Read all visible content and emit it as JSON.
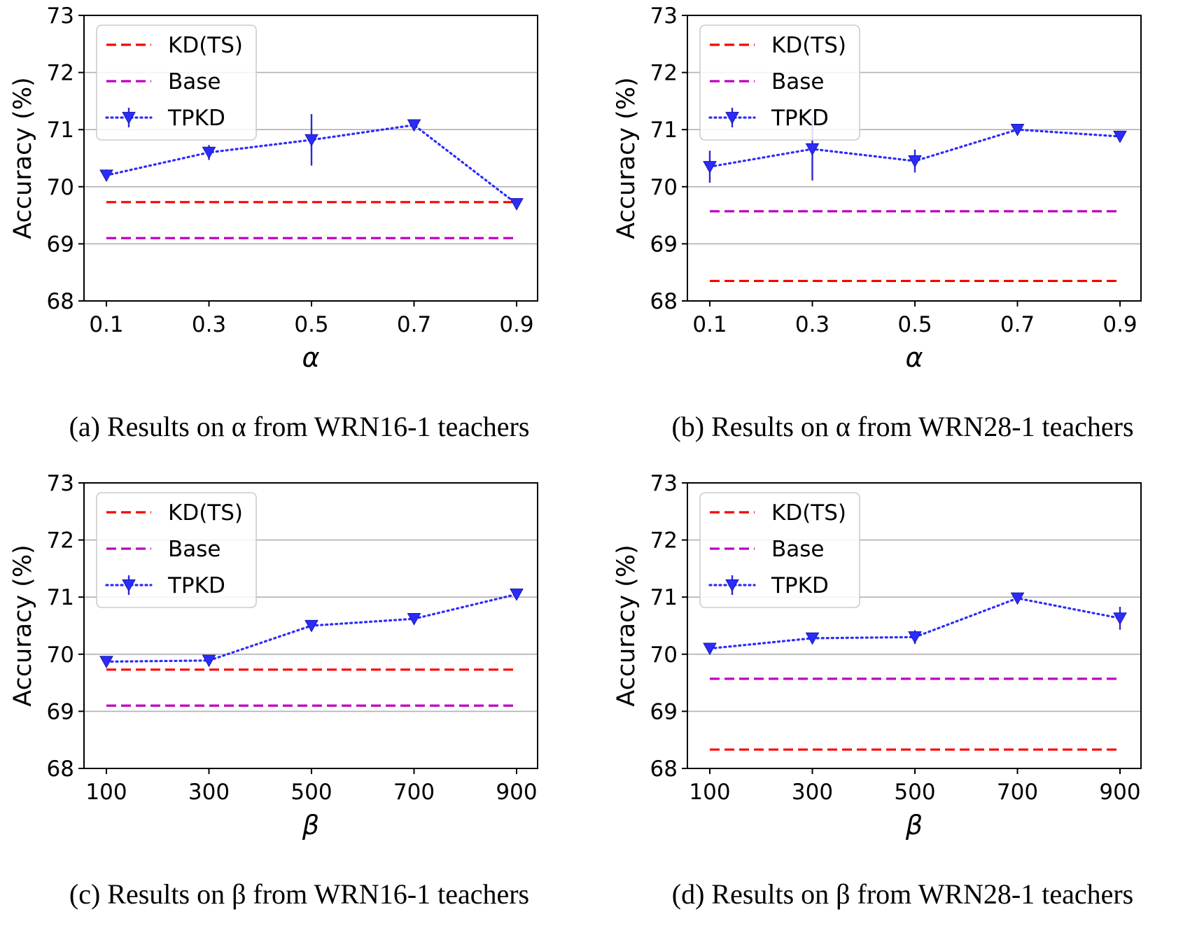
{
  "chart_data": [
    {
      "type": "line",
      "caption": "(a) Results on α from WRN16-1 teachers",
      "xlabel": "α",
      "ylabel": "Accuracy (%)",
      "categories": [
        "0.1",
        "0.3",
        "0.5",
        "0.7",
        "0.9"
      ],
      "yticks": [
        "68",
        "69",
        "70",
        "71",
        "72",
        "73"
      ],
      "ylim": [
        68,
        73
      ],
      "grid": "horizontal",
      "legend_position": "top-left",
      "series": [
        {
          "name": "KD(TS)",
          "style": "dashed",
          "color": "#ff0000",
          "values": [
            69.73,
            69.73,
            69.73,
            69.73,
            69.73
          ]
        },
        {
          "name": "Base",
          "style": "dashed",
          "color": "#bf00bf",
          "values": [
            69.1,
            69.1,
            69.1,
            69.1,
            69.1
          ]
        },
        {
          "name": "TPKD",
          "style": "dotted-marker",
          "color": "#2b2bff",
          "values": [
            70.2,
            70.6,
            70.82,
            71.08,
            69.7
          ],
          "errors": [
            0.1,
            0.13,
            0.45,
            0.08,
            0.1
          ]
        }
      ]
    },
    {
      "type": "line",
      "caption": "(b) Results on α from WRN28-1 teachers",
      "xlabel": "α",
      "ylabel": "Accuracy (%)",
      "categories": [
        "0.1",
        "0.3",
        "0.5",
        "0.7",
        "0.9"
      ],
      "yticks": [
        "68",
        "69",
        "70",
        "71",
        "72",
        "73"
      ],
      "ylim": [
        68,
        73
      ],
      "grid": "horizontal",
      "legend_position": "top-left",
      "series": [
        {
          "name": "KD(TS)",
          "style": "dashed",
          "color": "#ff0000",
          "values": [
            68.35,
            68.35,
            68.35,
            68.35,
            68.35
          ]
        },
        {
          "name": "Base",
          "style": "dashed",
          "color": "#bf00bf",
          "values": [
            69.57,
            69.57,
            69.57,
            69.57,
            69.57
          ]
        },
        {
          "name": "TPKD",
          "style": "dotted-marker",
          "color": "#2b2bff",
          "values": [
            70.35,
            70.66,
            70.45,
            71.0,
            70.88
          ],
          "errors": [
            0.28,
            0.55,
            0.2,
            0.06,
            0.06
          ]
        }
      ]
    },
    {
      "type": "line",
      "caption": "(c) Results on β from WRN16-1 teachers",
      "xlabel": "β",
      "ylabel": "Accuracy (%)",
      "categories": [
        "100",
        "300",
        "500",
        "700",
        "900"
      ],
      "yticks": [
        "68",
        "69",
        "70",
        "71",
        "72",
        "73"
      ],
      "ylim": [
        68,
        73
      ],
      "grid": "horizontal",
      "legend_position": "top-left",
      "series": [
        {
          "name": "KD(TS)",
          "style": "dashed",
          "color": "#ff0000",
          "values": [
            69.73,
            69.73,
            69.73,
            69.73,
            69.73
          ]
        },
        {
          "name": "Base",
          "style": "dashed",
          "color": "#bf00bf",
          "values": [
            69.1,
            69.1,
            69.1,
            69.1,
            69.1
          ]
        },
        {
          "name": "TPKD",
          "style": "dotted-marker",
          "color": "#2b2bff",
          "values": [
            69.87,
            69.89,
            70.5,
            70.62,
            71.05
          ],
          "errors": [
            0.06,
            0.06,
            0.07,
            0.07,
            0.07
          ]
        }
      ]
    },
    {
      "type": "line",
      "caption": "(d) Results on β from WRN28-1 teachers",
      "xlabel": "β",
      "ylabel": "Accuracy (%)",
      "categories": [
        "100",
        "300",
        "500",
        "700",
        "900"
      ],
      "yticks": [
        "68",
        "69",
        "70",
        "71",
        "72",
        "73"
      ],
      "ylim": [
        68,
        73
      ],
      "grid": "horizontal",
      "legend_position": "top-left",
      "series": [
        {
          "name": "KD(TS)",
          "style": "dashed",
          "color": "#ff0000",
          "values": [
            68.33,
            68.33,
            68.33,
            68.33,
            68.33
          ]
        },
        {
          "name": "Base",
          "style": "dashed",
          "color": "#bf00bf",
          "values": [
            69.57,
            69.57,
            69.57,
            69.57,
            69.57
          ]
        },
        {
          "name": "TPKD",
          "style": "dotted-marker",
          "color": "#2b2bff",
          "values": [
            70.1,
            70.28,
            70.3,
            70.98,
            70.63
          ],
          "errors": [
            0.06,
            0.06,
            0.12,
            0.06,
            0.2
          ]
        }
      ]
    }
  ]
}
